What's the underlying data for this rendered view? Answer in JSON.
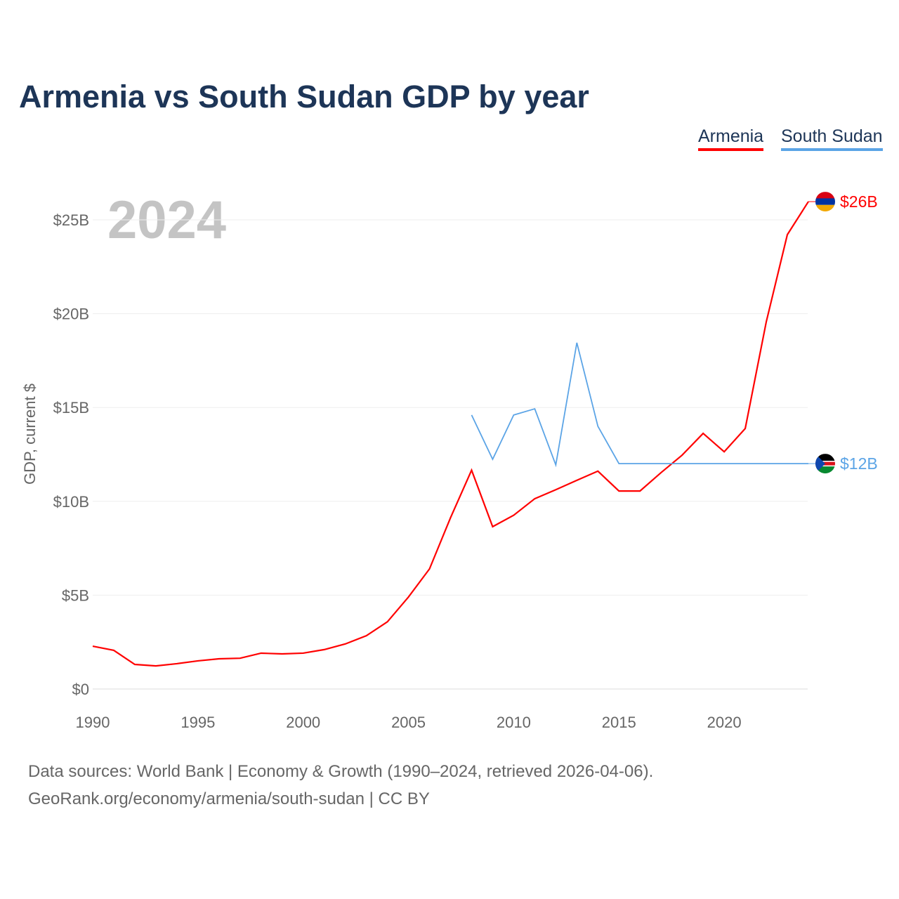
{
  "chart_data": {
    "type": "line",
    "title": "Armenia vs South Sudan GDP by year",
    "ylabel": "GDP, current $",
    "xlabel": "",
    "year_label": "2024",
    "xlim": [
      1990,
      2024
    ],
    "ylim": [
      0,
      27
    ],
    "x_ticks": [
      1990,
      1995,
      2000,
      2005,
      2010,
      2015,
      2020
    ],
    "y_ticks": [
      0,
      5,
      10,
      15,
      20,
      25
    ],
    "y_tick_labels": [
      "$0",
      "$5B",
      "$10B",
      "$15B",
      "$20B",
      "$25B"
    ],
    "grid": true,
    "legend_position": "top-right",
    "series": [
      {
        "name": "Armenia",
        "color": "#ff0000",
        "end_label": "$26B",
        "flag": "armenia-flag",
        "x": [
          1990,
          1991,
          1992,
          1993,
          1994,
          1995,
          1996,
          1997,
          1998,
          1999,
          2000,
          2001,
          2002,
          2003,
          2004,
          2005,
          2006,
          2007,
          2008,
          2009,
          2010,
          2011,
          2012,
          2013,
          2014,
          2015,
          2016,
          2017,
          2018,
          2019,
          2020,
          2021,
          2022,
          2023,
          2024
        ],
        "values": [
          2.28,
          2.06,
          1.31,
          1.23,
          1.35,
          1.5,
          1.61,
          1.64,
          1.91,
          1.87,
          1.91,
          2.1,
          2.4,
          2.84,
          3.58,
          4.9,
          6.4,
          9.13,
          11.66,
          8.65,
          9.26,
          10.14,
          10.62,
          11.12,
          11.61,
          10.55,
          10.55,
          11.53,
          12.46,
          13.62,
          12.64,
          13.88,
          19.57,
          24.21,
          25.97
        ]
      },
      {
        "name": "South Sudan",
        "color": "#5ba4e6",
        "end_label": "$12B",
        "flag": "south-sudan-flag",
        "x": [
          2008,
          2009,
          2010,
          2011,
          2012,
          2013,
          2014,
          2015,
          2016,
          2017,
          2018,
          2019,
          2020,
          2021,
          2022,
          2023,
          2024
        ],
        "values": [
          14.6,
          12.24,
          14.6,
          14.93,
          11.94,
          18.45,
          14.0,
          12.01,
          12.01,
          12.01,
          12.01,
          12.01,
          12.01,
          12.01,
          12.01,
          12.01,
          12.01
        ]
      }
    ]
  },
  "footer": {
    "line1": "Data sources: World Bank | Economy & Growth (1990–2024, retrieved 2026-04-06).",
    "line2": "GeoRank.org/economy/armenia/south-sudan | CC BY"
  }
}
